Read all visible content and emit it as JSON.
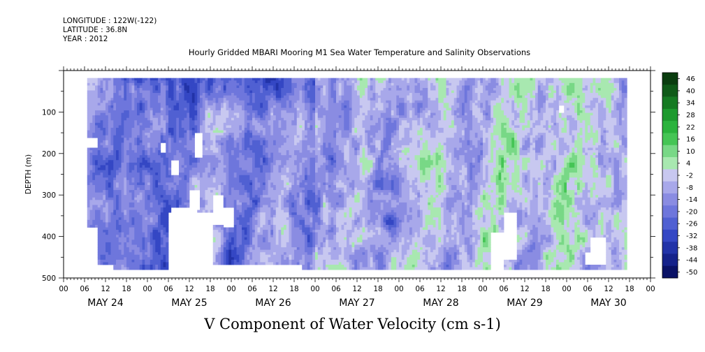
{
  "header": {
    "longitude": "LONGITUDE : 122W(-122)",
    "latitude": "LATITUDE : 36.8N",
    "year": "YEAR : 2012"
  },
  "title": "Hourly Gridded MBARI Mooring M1 Sea Water Temperature and Salinity Observations",
  "bottom_label": "V Component of Water Velocity (cm s-1)",
  "chart_data": {
    "type": "heatmap",
    "variable": "V Component of Water Velocity (cm s-1)",
    "ylabel": "DEPTH (m)",
    "ylim": [
      500,
      0
    ],
    "y_inverted": true,
    "y_ticks": [
      100,
      200,
      300,
      400,
      500
    ],
    "x_range_hours": [
      0,
      168
    ],
    "x_hour_ticks": [
      "00",
      "06",
      "12",
      "18",
      "00",
      "06",
      "12",
      "18",
      "00",
      "06",
      "12",
      "18",
      "00",
      "06",
      "12",
      "18",
      "00",
      "06",
      "12",
      "18",
      "00",
      "06",
      "12",
      "18",
      "00",
      "06",
      "12",
      "18",
      "00"
    ],
    "x_date_labels": [
      "MAY 24",
      "MAY 25",
      "MAY 26",
      "MAY 27",
      "MAY 28",
      "MAY 29",
      "MAY 30"
    ],
    "colorbar": {
      "levels": [
        "46",
        "40",
        "34",
        "28",
        "22",
        "16",
        "10",
        "4",
        "-2",
        "-8",
        "-14",
        "-20",
        "-26",
        "-32",
        "-38",
        "-44",
        "-50"
      ],
      "range": [
        -50,
        50
      ],
      "colors_high_to_low": [
        "#0a3d0f",
        "#0f5a18",
        "#157a22",
        "#1d9a2e",
        "#2bb33d",
        "#45c555",
        "#78d886",
        "#a8e8b0",
        "#c8c8f0",
        "#a8a8ea",
        "#8a8ce2",
        "#6e76dc",
        "#5060d2",
        "#3447c4",
        "#2233a8",
        "#15228a",
        "#0a1266"
      ]
    },
    "depth_data_range_m": [
      20,
      480
    ],
    "pattern_summary": "V velocity mostly negative (blue) in May 24-26 with strongest negatives near surface May 25; increasingly positive (green) bands May 27-30; missing (white) regions at depth on May 25 and May 29-30."
  }
}
